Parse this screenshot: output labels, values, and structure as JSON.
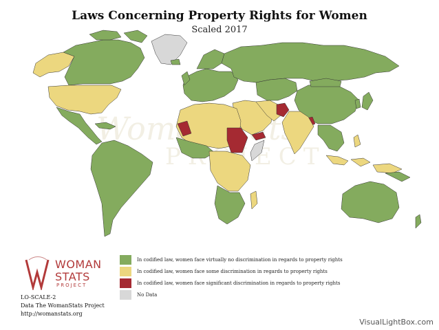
{
  "title": "Laws Concerning Property Rights for Women",
  "subtitle": "Scaled 2017",
  "colors": {
    "green": "#84ab5e",
    "yellow": "#ecd77f",
    "red": "#a52a32",
    "grey": "#d8d8d8",
    "border": "#333333"
  },
  "legend": [
    {
      "label": "In codified law, women face virtually no discrimination in regards to property rights",
      "color": "#84ab5e"
    },
    {
      "label": "In codified law, women face some discrimination in regards to property rights",
      "color": "#ecd77f"
    },
    {
      "label": "In codified law, women face significant discrimination in regards to property rights",
      "color": "#a52a32"
    },
    {
      "label": "No Data",
      "color": "#d8d8d8"
    }
  ],
  "logo": {
    "line1": "WOMAN",
    "line2": "STATS",
    "line3": "PROJECT"
  },
  "source": {
    "code": "LO-SCALE-2",
    "data": "Data The WomanStats Project",
    "url": "http://womanstats.org"
  },
  "footer": "VisualLightBox.com",
  "watermark": {
    "line1": "WomanStats",
    "line2": "PROJECT"
  }
}
